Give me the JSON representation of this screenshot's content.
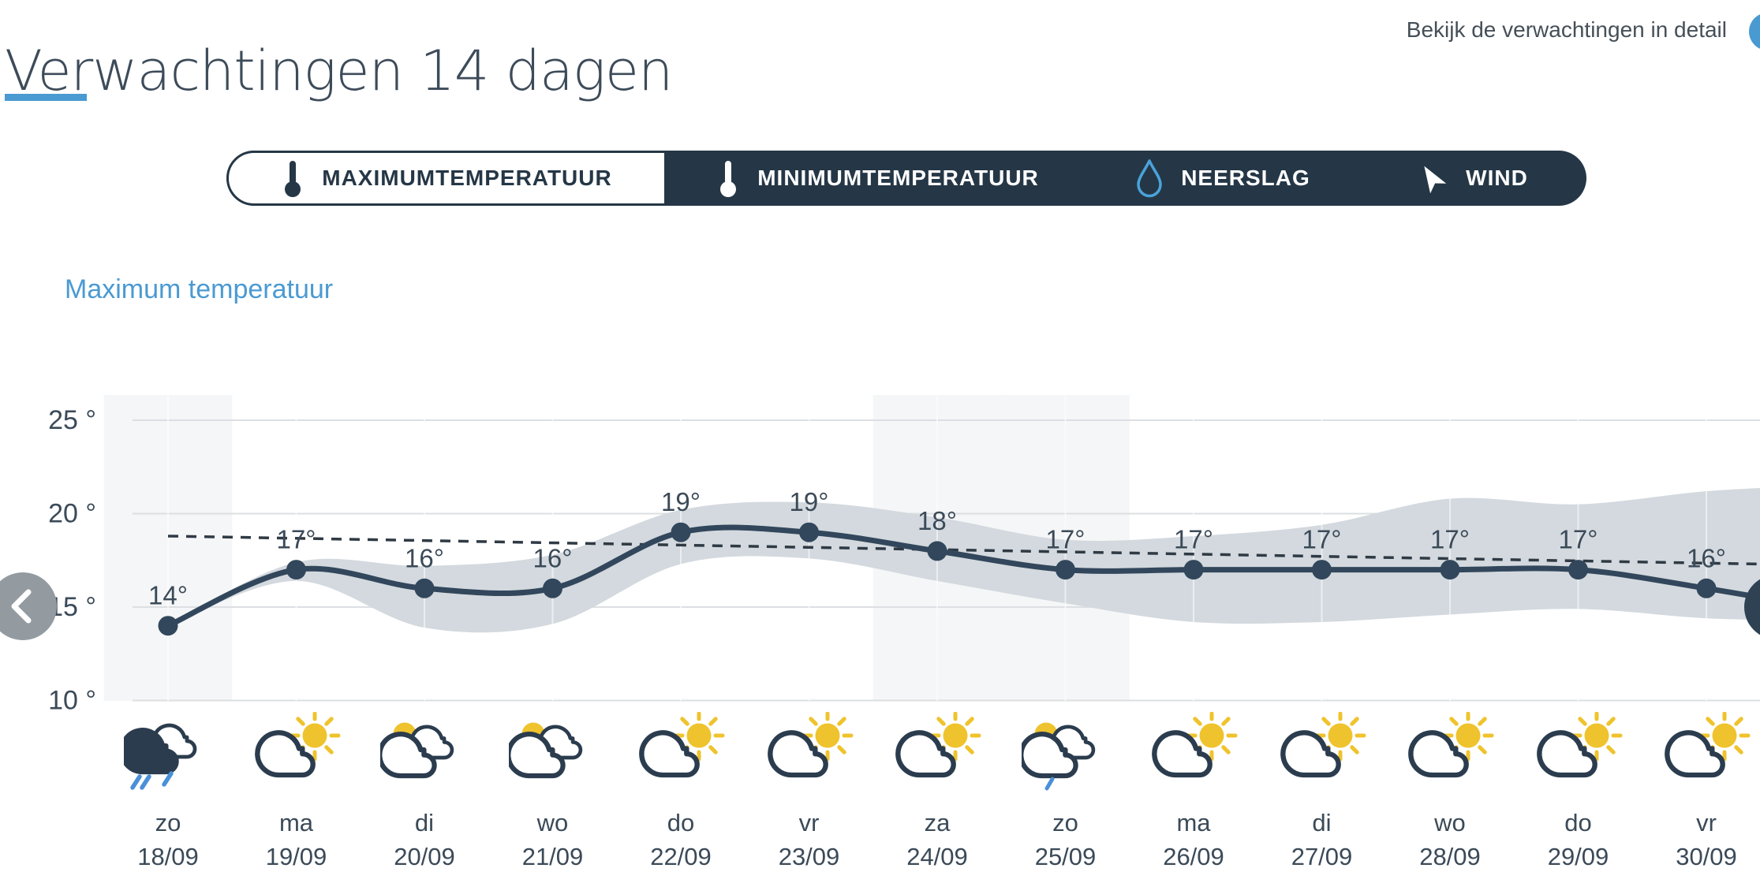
{
  "header": {
    "title": "Verwachtingen 14 dagen",
    "detail_link": "Bekijk de verwachtingen in detail"
  },
  "tabs": [
    {
      "id": "maximumtemperatuur",
      "label": "MAXIMUMTEMPERATUUR",
      "icon": "thermometer-icon",
      "active": true
    },
    {
      "id": "minimumtemperatuur",
      "label": "MINIMUMTEMPERATUUR",
      "icon": "thermometer-icon",
      "active": false
    },
    {
      "id": "neerslag",
      "label": "NEERSLAG",
      "icon": "droplet-icon",
      "active": false
    },
    {
      "id": "wind",
      "label": "WIND",
      "icon": "wind-icon",
      "active": false
    }
  ],
  "section_label": "Maximum temperatuur",
  "colors": {
    "accent_blue": "#4a9ad2",
    "navy": "#253746",
    "line": "#32475c",
    "text": "#3b4a58",
    "band_gray": "#d3d9de",
    "weekend_band": "#f5f6f7",
    "gridline": "#dcdfe2",
    "sun_yellow": "#efc32d",
    "rain_blue": "#4a90d9",
    "nav_gray": "#939ba1"
  },
  "chart_data": {
    "type": "line",
    "title": "Maximum temperatuur",
    "unit": "°",
    "y_axis": {
      "ticks": [
        25,
        20,
        15,
        10
      ],
      "tick_label_suffix": " °",
      "visible_range": [
        10,
        25
      ]
    },
    "x_axis": {
      "grid": "per-day",
      "weekend_highlight": true
    },
    "days": [
      {
        "weekday": "zo",
        "date": "18/09",
        "temp": 14,
        "icon": "rain",
        "weekend": true
      },
      {
        "weekday": "ma",
        "date": "19/09",
        "temp": 17,
        "icon": "sun-cloud",
        "weekend": false
      },
      {
        "weekday": "di",
        "date": "20/09",
        "temp": 16,
        "icon": "sun-behind-clouds",
        "weekend": false
      },
      {
        "weekday": "wo",
        "date": "21/09",
        "temp": 16,
        "icon": "sun-behind-clouds",
        "weekend": false
      },
      {
        "weekday": "do",
        "date": "22/09",
        "temp": 19,
        "icon": "sun-cloud",
        "weekend": false
      },
      {
        "weekday": "vr",
        "date": "23/09",
        "temp": 19,
        "icon": "sun-cloud",
        "weekend": false
      },
      {
        "weekday": "za",
        "date": "24/09",
        "temp": 18,
        "icon": "sun-cloud",
        "weekend": true
      },
      {
        "weekday": "zo",
        "date": "25/09",
        "temp": 17,
        "icon": "sun-behind-clouds-drizzle",
        "weekend": true
      },
      {
        "weekday": "ma",
        "date": "26/09",
        "temp": 17,
        "icon": "sun-cloud",
        "weekend": false
      },
      {
        "weekday": "di",
        "date": "27/09",
        "temp": 17,
        "icon": "sun-cloud",
        "weekend": false
      },
      {
        "weekday": "wo",
        "date": "28/09",
        "temp": 17,
        "icon": "sun-cloud",
        "weekend": false
      },
      {
        "weekday": "do",
        "date": "29/09",
        "temp": 17,
        "icon": "sun-cloud",
        "weekend": false
      },
      {
        "weekday": "vr",
        "date": "30/09",
        "temp": 16,
        "icon": "sun-cloud",
        "weekend": false
      }
    ],
    "series": [
      {
        "name": "maximumtemperatuur",
        "values": [
          14,
          17,
          16,
          16,
          19,
          19,
          18,
          17,
          17,
          17,
          17,
          17,
          16
        ]
      }
    ],
    "uncertainty_band": {
      "high": [
        14,
        17.4,
        17.2,
        17.8,
        20.2,
        20.6,
        19.8,
        18.6,
        18.8,
        19.4,
        20.8,
        20.5,
        21.2
      ],
      "low": [
        14,
        16.4,
        13.9,
        14.1,
        17.3,
        17.6,
        16.4,
        15.2,
        14.2,
        14.2,
        14.6,
        14.9,
        14.4
      ]
    },
    "normal_line": {
      "style": "dashed",
      "start_value": 18.8,
      "end_value": 17.3
    }
  },
  "nav": {
    "prev": "chevron-left",
    "next": "chevron-right"
  }
}
